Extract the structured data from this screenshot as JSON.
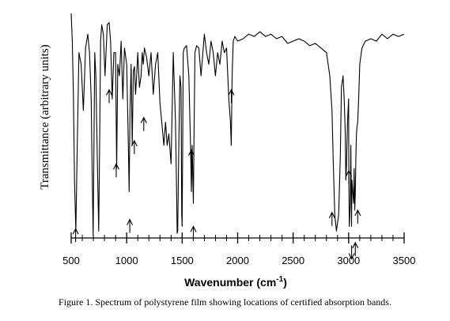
{
  "figure": {
    "caption": "Figure 1.  Spectrum of polystyrene film showing locations of certified absorption bands."
  },
  "chart_data": {
    "type": "line",
    "ylabel": "Transmittance  (arbitrary units)",
    "xlabel_main": "Wavenumber (cm",
    "xlabel_sup": "-1",
    "xlabel_end": ")",
    "xlim": [
      500,
      3500
    ],
    "ylim": [
      0,
      100
    ],
    "xticks": [
      500,
      1000,
      1500,
      2000,
      2500,
      3000,
      3500
    ],
    "xtick_labels": [
      "500",
      "1000",
      "1500",
      "2000",
      "2500",
      "3000",
      "3500"
    ],
    "grid": false,
    "line_color": "#000000",
    "series": [
      {
        "x": [
          500,
          510,
          520,
          530,
          542,
          555,
          570,
          590,
          610,
          630,
          650,
          665,
          680,
          692,
          698,
          705,
          712,
          722,
          735,
          748,
          757,
          765,
          775,
          790,
          805,
          825,
          842,
          855,
          870,
          885,
          900,
          910,
          920,
          935,
          950,
          965,
          980,
          1000,
          1015,
          1022,
          1030,
          1040,
          1050,
          1060,
          1070,
          1080,
          1090,
          1100,
          1115,
          1130,
          1140,
          1150,
          1160,
          1170,
          1180,
          1200,
          1220,
          1240,
          1260,
          1280,
          1300,
          1320,
          1335,
          1350,
          1365,
          1380,
          1400,
          1420,
          1440,
          1450,
          1455,
          1460,
          1470,
          1480,
          1490,
          1496,
          1500,
          1505,
          1510,
          1520,
          1540,
          1560,
          1575,
          1583,
          1590,
          1597,
          1601,
          1606,
          1615,
          1630,
          1650,
          1670,
          1700,
          1720,
          1740,
          1760,
          1780,
          1800,
          1820,
          1840,
          1860,
          1880,
          1900,
          1920,
          1935,
          1942,
          1950,
          1960,
          1975,
          2000,
          2050,
          2100,
          2150,
          2200,
          2250,
          2300,
          2350,
          2400,
          2450,
          2500,
          2550,
          2600,
          2650,
          2700,
          2750,
          2800,
          2830,
          2850,
          2860,
          2875,
          2890,
          2910,
          2925,
          2935,
          2950,
          2960,
          2970,
          2975,
          2980,
          2990,
          3000,
          3002,
          3006,
          3015,
          3020,
          3026,
          3030,
          3037,
          3045,
          3050,
          3055,
          3060,
          3065,
          3070,
          3075,
          3082,
          3090,
          3100,
          3120,
          3150,
          3200,
          3250,
          3300,
          3350,
          3400,
          3450,
          3500
        ],
        "y": [
          97,
          85,
          62,
          25,
          3,
          40,
          80,
          75,
          55,
          82,
          88,
          80,
          60,
          20,
          1,
          40,
          80,
          70,
          35,
          3,
          45,
          85,
          92,
          88,
          70,
          92,
          93,
          85,
          60,
          80,
          80,
          30,
          75,
          70,
          85,
          60,
          82,
          75,
          40,
          20,
          55,
          75,
          40,
          72,
          74,
          62,
          70,
          80,
          65,
          70,
          80,
          75,
          82,
          80,
          78,
          70,
          80,
          62,
          75,
          80,
          58,
          48,
          40,
          50,
          40,
          45,
          32,
          80,
          50,
          20,
          2,
          3,
          40,
          70,
          65,
          10,
          5,
          40,
          80,
          82,
          83,
          70,
          40,
          20,
          40,
          25,
          15,
          40,
          80,
          83,
          82,
          70,
          88,
          80,
          75,
          85,
          80,
          70,
          80,
          75,
          85,
          80,
          82,
          60,
          50,
          40,
          70,
          85,
          87,
          85,
          86,
          88,
          87,
          89,
          87,
          88,
          86,
          87,
          84,
          85,
          86,
          85,
          83,
          84,
          82,
          80,
          70,
          55,
          35,
          10,
          3,
          10,
          35,
          65,
          70,
          60,
          45,
          25,
          30,
          50,
          60,
          25,
          5,
          15,
          40,
          5,
          25,
          20,
          15,
          30,
          12,
          20,
          35,
          45,
          48,
          50,
          60,
          75,
          82,
          85,
          86,
          85,
          88,
          86,
          88,
          87,
          88
        ]
      }
    ],
    "arrows": [
      {
        "x": 540,
        "direction": "up",
        "y_tip": 4
      },
      {
        "x": 842,
        "direction": "up",
        "y_tip": 64
      },
      {
        "x": 906,
        "direction": "up",
        "y_tip": 32
      },
      {
        "x": 1028,
        "direction": "up",
        "y_tip": 8
      },
      {
        "x": 1069,
        "direction": "up",
        "y_tip": 42
      },
      {
        "x": 1154,
        "direction": "up",
        "y_tip": 52
      },
      {
        "x": 1583,
        "direction": "up",
        "y_tip": 38
      },
      {
        "x": 1601,
        "direction": "up",
        "y_tip": 5
      },
      {
        "x": 1943,
        "direction": "up",
        "y_tip": 64
      },
      {
        "x": 2850,
        "direction": "up",
        "y_tip": 11
      },
      {
        "x": 3001,
        "direction": "up",
        "y_tip": 29
      },
      {
        "x": 3027,
        "direction": "down",
        "y_tip": -9
      },
      {
        "x": 3060,
        "direction": "up",
        "y_tip": -2
      },
      {
        "x": 3082,
        "direction": "up",
        "y_tip": 12
      }
    ]
  }
}
